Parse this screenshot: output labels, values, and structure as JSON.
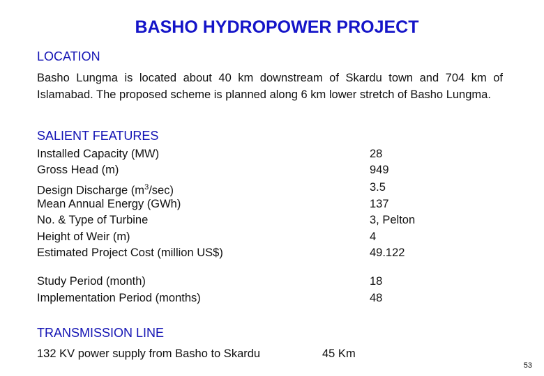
{
  "title": "BASHO HYDROPOWER PROJECT",
  "location": {
    "heading": "LOCATION",
    "text": "Basho Lungma is located about 40 km downstream of Skardu town and 704 km of Islamabad. The proposed scheme is planned along 6 km lower stretch of Basho Lungma."
  },
  "salient": {
    "heading": "SALIENT FEATURES",
    "rows": [
      {
        "label": "Installed Capacity (MW)",
        "value": "28"
      },
      {
        "label": "Gross Head (m)",
        "value": "949"
      },
      {
        "label_pre": "Design Discharge (m",
        "label_sup": "3",
        "label_post": "/sec)",
        "value": "3.5"
      },
      {
        "label": "Mean Annual Energy (GWh)",
        "value": "137"
      },
      {
        "label": "No. & Type of Turbine",
        "value": "3, Pelton"
      },
      {
        "label": "Height of Weir (m)",
        "value": "4"
      },
      {
        "label": "Estimated Project Cost (million US$)",
        "value": "49.122"
      },
      {
        "label": "Study Period (month)",
        "value": "18"
      },
      {
        "label": "Implementation Period (months)",
        "value": "48"
      }
    ]
  },
  "transmission": {
    "heading": "TRANSMISSION LINE",
    "label": "132 KV power supply from Basho to Skardu",
    "value": "45 Km"
  },
  "page_number": "53"
}
